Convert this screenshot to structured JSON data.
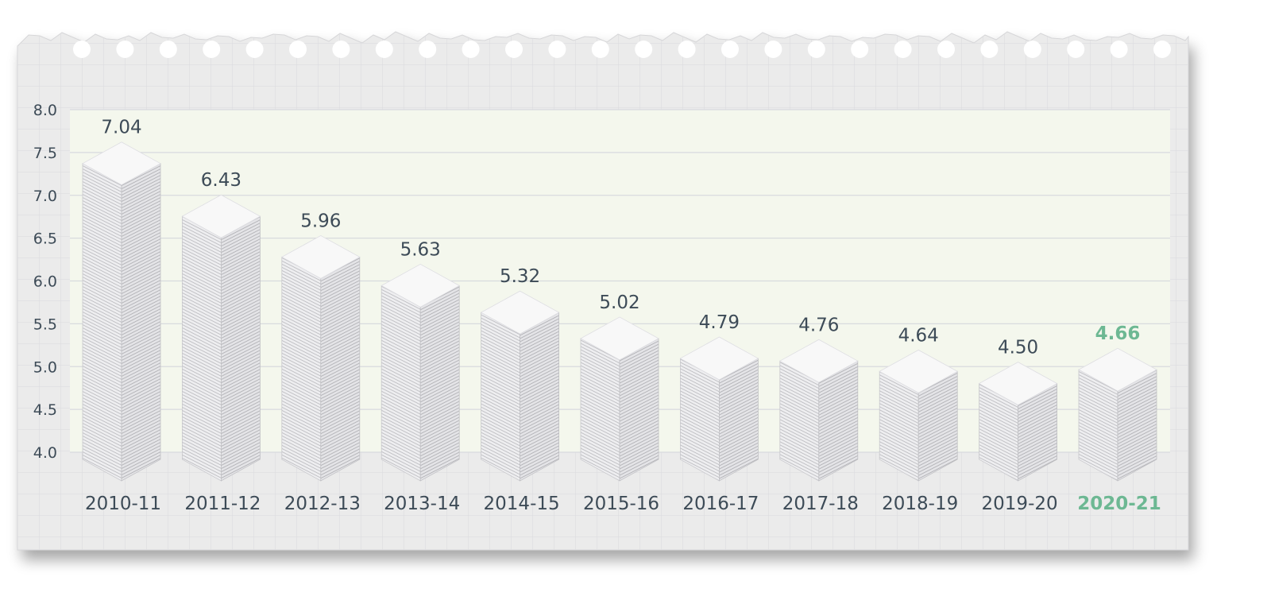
{
  "chart_data": {
    "type": "bar",
    "categories": [
      "2010-11",
      "2011-12",
      "2012-13",
      "2013-14",
      "2014-15",
      "2015-16",
      "2016-17",
      "2017-18",
      "2018-19",
      "2019-20",
      "2020-21"
    ],
    "values": [
      7.04,
      6.43,
      5.96,
      5.63,
      5.32,
      5.02,
      4.79,
      4.76,
      4.64,
      4.5,
      4.66
    ],
    "value_labels": [
      "7.04",
      "6.43",
      "5.96",
      "5.63",
      "5.32",
      "5.02",
      "4.79",
      "4.76",
      "4.64",
      "4.50",
      "4.66"
    ],
    "yticks": [
      "8.0",
      "7.5",
      "7.0",
      "6.5",
      "6.0",
      "5.5",
      "5.0",
      "4.5",
      "4.0"
    ],
    "ylim": [
      4.0,
      8.0
    ],
    "grid": true,
    "highlight_index": 10,
    "highlight_color": "#6db893",
    "label_color": "#3d4b57",
    "plot_background": "#f4f7ed",
    "paper_color": "#ebebeb",
    "grid_color": "#d8dade"
  }
}
